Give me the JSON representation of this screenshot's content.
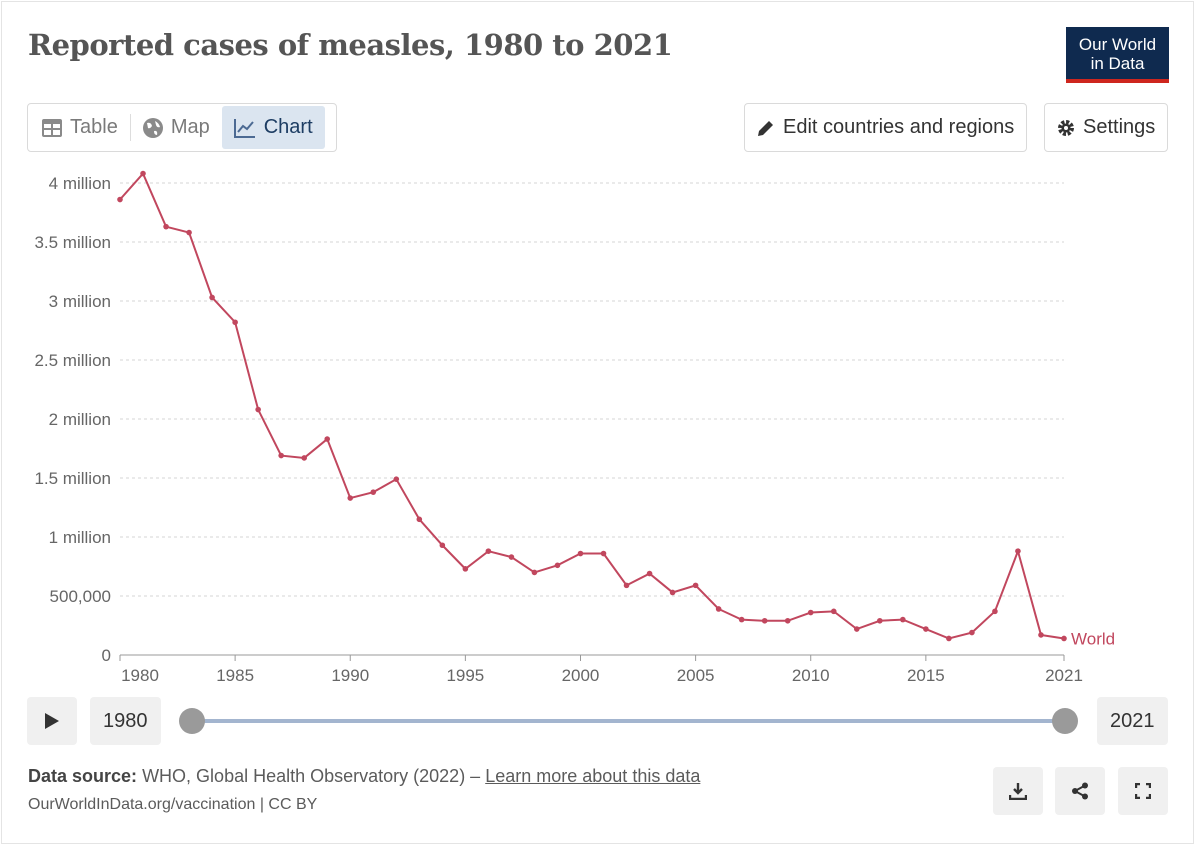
{
  "title": "Reported cases of measles, 1980 to 2021",
  "logo": {
    "line1": "Our World",
    "line2": "in Data"
  },
  "tabs": [
    {
      "label": "Table",
      "icon": "table-icon"
    },
    {
      "label": "Map",
      "icon": "globe-icon"
    },
    {
      "label": "Chart",
      "icon": "line-chart-icon",
      "active": true
    }
  ],
  "buttons": {
    "edit": "Edit countries and regions",
    "settings": "Settings"
  },
  "timeline": {
    "start": "1980",
    "end": "2021"
  },
  "footer": {
    "source_label": "Data source:",
    "source": "WHO, Global Health Observatory (2022) –",
    "learn_more": "Learn more about this data",
    "license": "OurWorldInData.org/vaccination | CC BY"
  },
  "colors": {
    "series": "#c1475e",
    "accent": "#0f2a4f"
  },
  "chart_data": {
    "type": "line",
    "title": "Reported cases of measles, 1980 to 2021",
    "xlim": [
      1980,
      2021
    ],
    "ylim": [
      0,
      4000000
    ],
    "grid": "horizontal dashed",
    "yticks": [
      {
        "v": 0,
        "label": "0"
      },
      {
        "v": 500000,
        "label": "500,000"
      },
      {
        "v": 1000000,
        "label": "1 million"
      },
      {
        "v": 1500000,
        "label": "1.5 million"
      },
      {
        "v": 2000000,
        "label": "2 million"
      },
      {
        "v": 2500000,
        "label": "2.5 million"
      },
      {
        "v": 3000000,
        "label": "3 million"
      },
      {
        "v": 3500000,
        "label": "3.5 million"
      },
      {
        "v": 4000000,
        "label": "4 million"
      }
    ],
    "xticks": [
      {
        "v": 1980,
        "label": "1980"
      },
      {
        "v": 1985,
        "label": "1985"
      },
      {
        "v": 1990,
        "label": "1990"
      },
      {
        "v": 1995,
        "label": "1995"
      },
      {
        "v": 2000,
        "label": "2000"
      },
      {
        "v": 2005,
        "label": "2005"
      },
      {
        "v": 2010,
        "label": "2010"
      },
      {
        "v": 2015,
        "label": "2015"
      },
      {
        "v": 2021,
        "label": "2021"
      }
    ],
    "series": [
      {
        "name": "World",
        "x": [
          1980,
          1981,
          1982,
          1983,
          1984,
          1985,
          1986,
          1987,
          1988,
          1989,
          1990,
          1991,
          1992,
          1993,
          1994,
          1995,
          1996,
          1997,
          1998,
          1999,
          2000,
          2001,
          2002,
          2003,
          2004,
          2005,
          2006,
          2007,
          2008,
          2009,
          2010,
          2011,
          2012,
          2013,
          2014,
          2015,
          2016,
          2017,
          2018,
          2019,
          2020,
          2021
        ],
        "values": [
          3860000,
          4080000,
          3630000,
          3580000,
          3030000,
          2820000,
          2080000,
          1690000,
          1670000,
          1830000,
          1330000,
          1380000,
          1490000,
          1150000,
          930000,
          730000,
          880000,
          830000,
          700000,
          760000,
          860000,
          860000,
          590000,
          690000,
          530000,
          590000,
          390000,
          300000,
          290000,
          290000,
          360000,
          370000,
          220000,
          290000,
          300000,
          220000,
          140000,
          190000,
          370000,
          880000,
          170000,
          140000
        ]
      }
    ]
  }
}
